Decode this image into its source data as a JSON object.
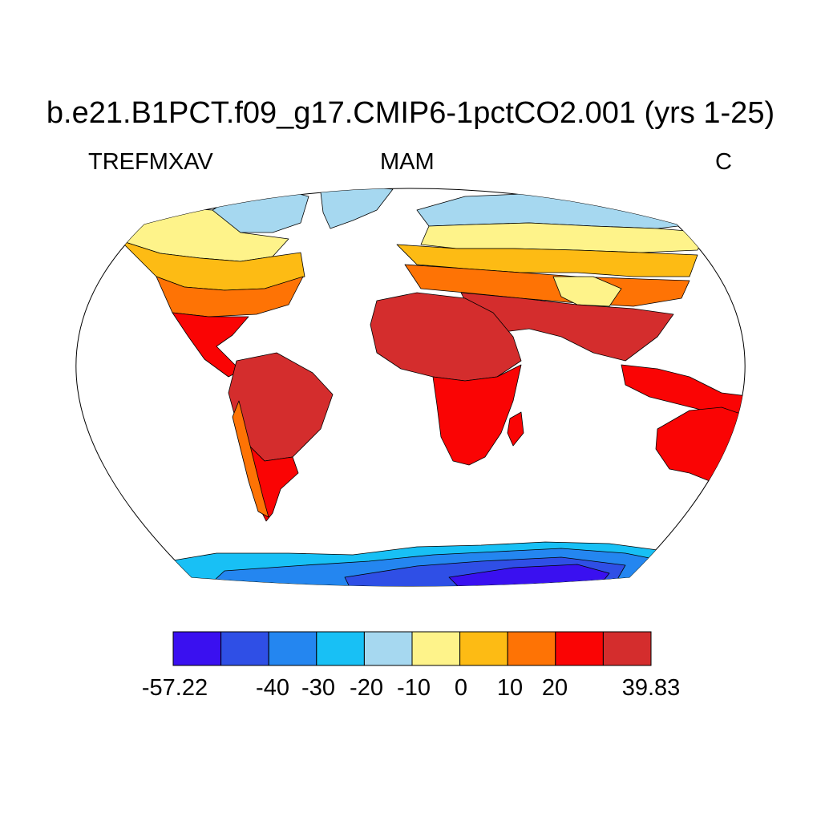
{
  "title": "b.e21.B1PCT.f09_g17.CMIP6-1pctCO2.001 (yrs 1-25)",
  "variable": "TREFMXAV",
  "season": "MAM",
  "units": "C",
  "colorbar": {
    "colors": [
      "#3a10f0",
      "#2f4fe6",
      "#2486f0",
      "#18c0f5",
      "#a6d8f0",
      "#fef38a",
      "#fdbb14",
      "#fe7305",
      "#fa0404",
      "#d42d2d"
    ],
    "labels": [
      "-57.22",
      "-40",
      "-30",
      "-20",
      "-10",
      "0",
      "10",
      "20",
      "39.83"
    ]
  },
  "colors": {
    "ocean": "#ffffff",
    "outline": "#000000"
  }
}
